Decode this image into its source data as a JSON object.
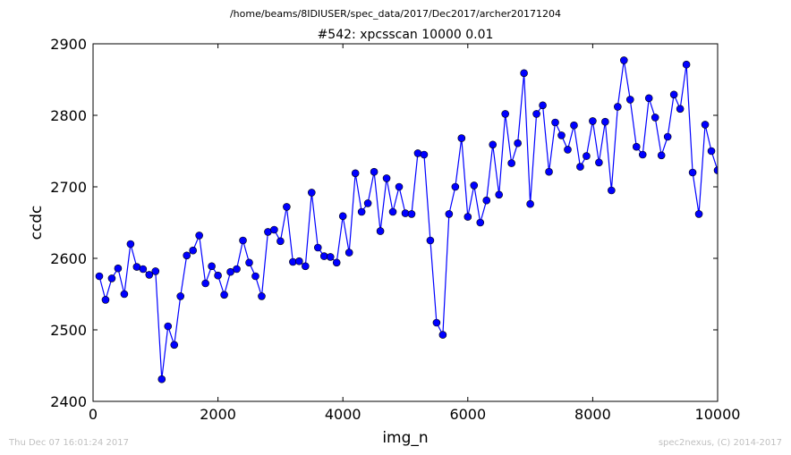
{
  "header": {
    "file_path": "/home/beams/8IDIUSER/spec_data/2017/Dec2017/archer20171204"
  },
  "footer": {
    "timestamp": "Thu Dec 07 16:01:24 2017",
    "credit": "spec2nexus, (C) 2014-2017"
  },
  "colors": {
    "series": "#0000ff",
    "marker_edge": "#000000",
    "axes": "#000000",
    "footer": "#c0c0c0"
  },
  "chart_data": {
    "type": "line",
    "title": "#542: xpcsscan 10000 0.01",
    "xlabel": "img_n",
    "ylabel": "ccdc",
    "xlim": [
      0,
      10000
    ],
    "ylim": [
      2400,
      2900
    ],
    "xticks": [
      0,
      2000,
      4000,
      6000,
      8000,
      10000
    ],
    "yticks": [
      2400,
      2500,
      2600,
      2700,
      2800,
      2900
    ],
    "grid": false,
    "marker": "circle",
    "series": [
      {
        "x": [
          100,
          200,
          300,
          400,
          500,
          600,
          700,
          800,
          900,
          1000,
          1100,
          1200,
          1300,
          1400,
          1500,
          1600,
          1700,
          1800,
          1900,
          2000,
          2100,
          2200,
          2300,
          2400,
          2500,
          2600,
          2700,
          2800,
          2900,
          3000,
          3100,
          3200,
          3300,
          3400,
          3500,
          3600,
          3700,
          3800,
          3900,
          4000,
          4100,
          4200,
          4300,
          4400,
          4500,
          4600,
          4700,
          4800,
          4900,
          5000,
          5100,
          5200,
          5300,
          5400,
          5500,
          5600,
          5700,
          5800,
          5900,
          6000,
          6100,
          6200,
          6300,
          6400,
          6500,
          6600,
          6700,
          6800,
          6900,
          7000,
          7100,
          7200,
          7300,
          7400,
          7500,
          7600,
          7700,
          7800,
          7900,
          8000,
          8100,
          8200,
          8300,
          8400,
          8500,
          8600,
          8700,
          8800,
          8900,
          9000,
          9100,
          9200,
          9300,
          9400,
          9500,
          9600,
          9700,
          9800,
          9900,
          10000
        ],
        "y": [
          2575,
          2542,
          2572,
          2586,
          2550,
          2620,
          2588,
          2585,
          2577,
          2582,
          2431,
          2505,
          2479,
          2547,
          2604,
          2611,
          2632,
          2565,
          2589,
          2576,
          2549,
          2581,
          2585,
          2625,
          2594,
          2575,
          2547,
          2637,
          2640,
          2624,
          2672,
          2595,
          2596,
          2589,
          2692,
          2615,
          2603,
          2602,
          2594,
          2659,
          2608,
          2719,
          2665,
          2677,
          2721,
          2638,
          2712,
          2665,
          2700,
          2663,
          2662,
          2747,
          2745,
          2625,
          2510,
          2493,
          2662,
          2700,
          2768,
          2658,
          2702,
          2650,
          2681,
          2759,
          2689,
          2802,
          2733,
          2761,
          2859,
          2676,
          2802,
          2814,
          2721,
          2790,
          2772,
          2752,
          2786,
          2728,
          2743,
          2792,
          2734,
          2791,
          2695,
          2812,
          2877,
          2822,
          2756,
          2745,
          2824,
          2797,
          2744,
          2770,
          2829,
          2809,
          2871,
          2720,
          2662,
          2787,
          2750,
          2723
        ]
      }
    ]
  }
}
